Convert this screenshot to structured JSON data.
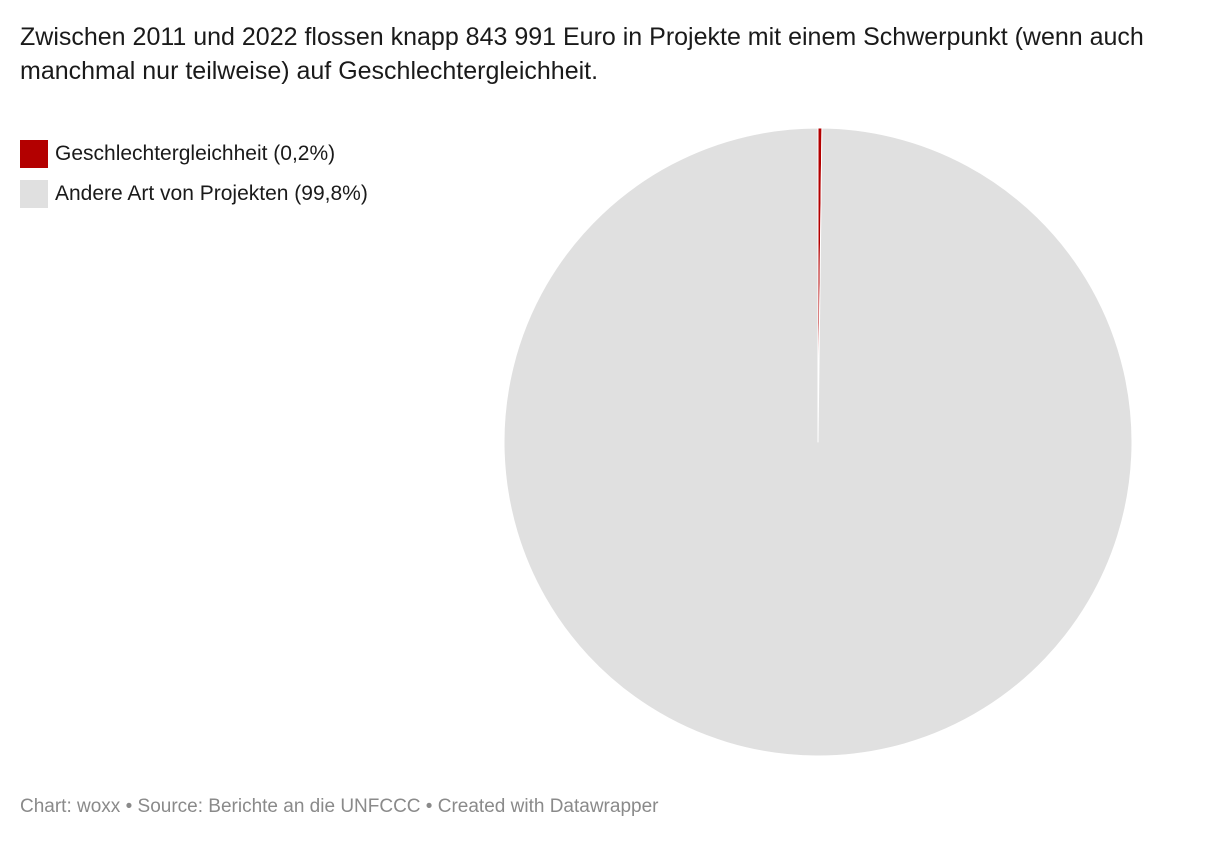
{
  "title": "Zwischen 2011 und 2022 flossen knapp 843 991 Euro in Projekte mit einem Schwerpunkt (wenn auch manchmal nur teilweise) auf Geschlechtergleichheit.",
  "footer": {
    "chart_credit": "Chart: woxx",
    "separator_1": " • ",
    "source": "Source: Berichte an die UNFCCC",
    "separator_2": " • ",
    "created_with": "Created with Datawrapper"
  },
  "chart_data": {
    "type": "pie",
    "title": "Zwischen 2011 und 2022 flossen knapp 843 991 Euro in Projekte mit einem Schwerpunkt (wenn auch manchmal nur teilweise) auf Geschlechtergleichheit.",
    "slices": [
      {
        "label": "Geschlechtergleichheit (0,2%)",
        "value": 0.2,
        "color": "#b30000"
      },
      {
        "label": "Andere Art von Projekten (99,8%)",
        "value": 99.8,
        "color": "#e0e0e0"
      }
    ],
    "legend_position": "top-left",
    "start_angle": "12 o'clock",
    "direction": "clockwise"
  }
}
